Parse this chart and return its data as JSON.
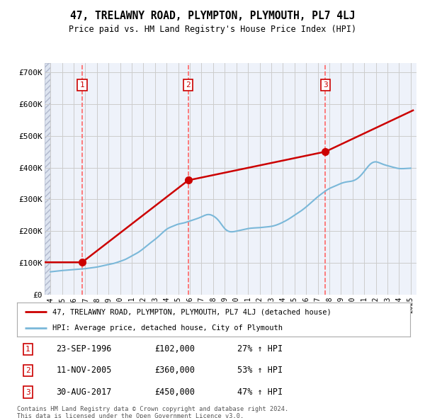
{
  "title": "47, TRELAWNY ROAD, PLYMPTON, PLYMOUTH, PL7 4LJ",
  "subtitle": "Price paid vs. HM Land Registry's House Price Index (HPI)",
  "legend_label_red": "47, TRELAWNY ROAD, PLYMPTON, PLYMOUTH, PL7 4LJ (detached house)",
  "legend_label_blue": "HPI: Average price, detached house, City of Plymouth",
  "footer1": "Contains HM Land Registry data © Crown copyright and database right 2024.",
  "footer2": "This data is licensed under the Open Government Licence v3.0.",
  "sales": [
    {
      "num": 1,
      "date_label": "23-SEP-1996",
      "date_x": 1996.73,
      "price": 102000,
      "pct": "27% ↑ HPI"
    },
    {
      "num": 2,
      "date_label": "11-NOV-2005",
      "date_x": 2005.86,
      "price": 360000,
      "pct": "53% ↑ HPI"
    },
    {
      "num": 3,
      "date_label": "30-AUG-2017",
      "date_x": 2017.66,
      "price": 450000,
      "pct": "47% ↑ HPI"
    }
  ],
  "xlim": [
    1993.5,
    2025.5
  ],
  "ylim": [
    0,
    730000
  ],
  "yticks": [
    0,
    100000,
    200000,
    300000,
    400000,
    500000,
    600000,
    700000
  ],
  "ytick_labels": [
    "£0",
    "£100K",
    "£200K",
    "£300K",
    "£400K",
    "£500K",
    "£600K",
    "£700K"
  ],
  "xticks": [
    1994,
    1995,
    1996,
    1997,
    1998,
    1999,
    2000,
    2001,
    2002,
    2003,
    2004,
    2005,
    2006,
    2007,
    2008,
    2009,
    2010,
    2011,
    2012,
    2013,
    2014,
    2015,
    2016,
    2017,
    2018,
    2019,
    2020,
    2021,
    2022,
    2023,
    2024,
    2025
  ],
  "hpi_color": "#7ab8d9",
  "price_color": "#cc0000",
  "dashed_color": "#ff6666",
  "grid_color": "#cccccc",
  "bg_plot": "#eef2fa",
  "box_color": "#cc0000",
  "price_x": [
    1993.5,
    1994.0,
    1996.73,
    2005.86,
    2017.66,
    2025.2
  ],
  "price_y": [
    102000,
    102000,
    102000,
    360000,
    450000,
    580000
  ]
}
